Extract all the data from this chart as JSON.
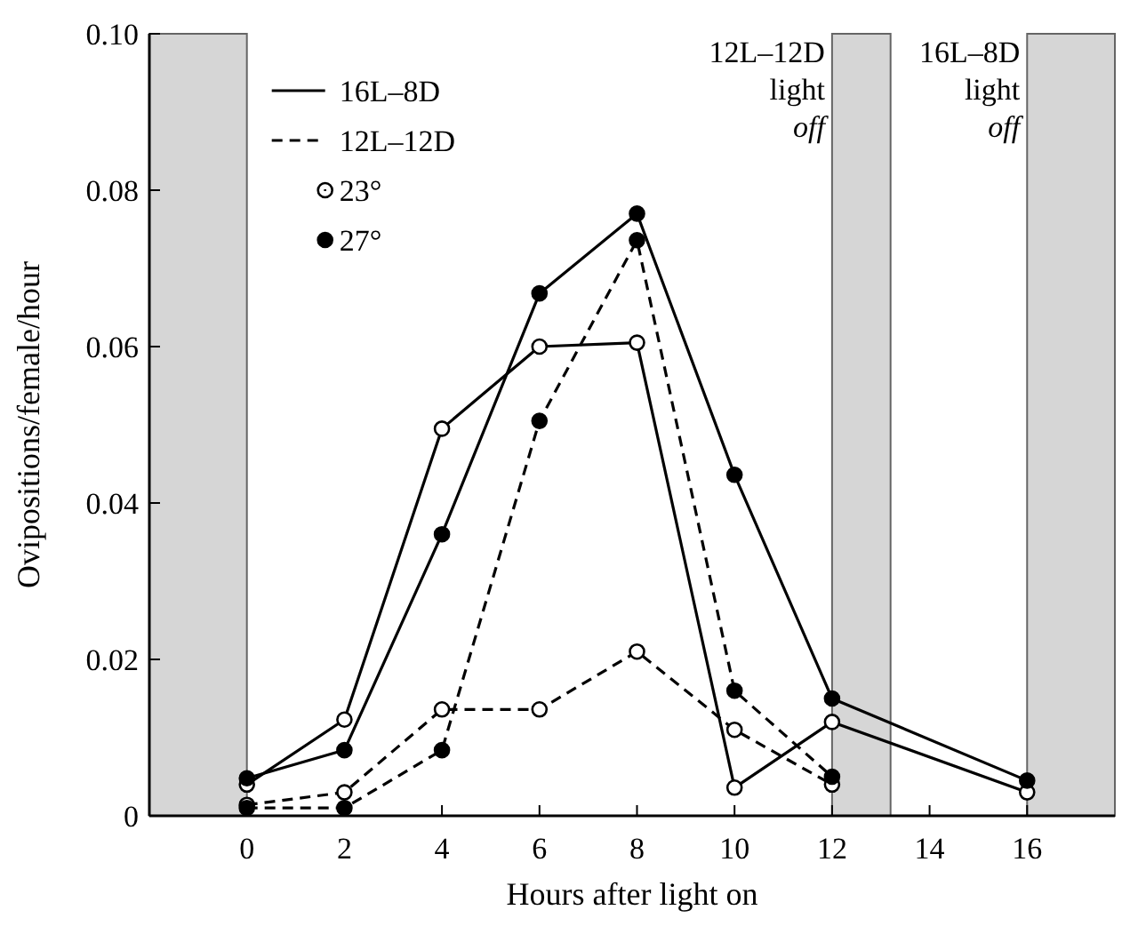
{
  "chart_data": {
    "type": "line",
    "xlabel": "Hours after light on",
    "ylabel": "Ovipositions/female/hour",
    "x": [
      0,
      2,
      4,
      6,
      8,
      10,
      12,
      16
    ],
    "xlim": [
      -2,
      17.8
    ],
    "xticks": [
      0,
      2,
      4,
      6,
      8,
      10,
      12,
      14,
      16
    ],
    "ylim": [
      0,
      0.1
    ],
    "yticks": [
      0,
      0.02,
      0.04,
      0.06,
      0.08,
      {
        "value": 0.1,
        "label": "0.10"
      }
    ],
    "marker": "circle",
    "grid": false,
    "series": [
      {
        "color": "#000000",
        "line_style": "solid",
        "values": [
          0.004,
          0.0123,
          0.0495,
          0.06,
          0.0605,
          0.0036,
          0.012,
          0.003
        ]
      },
      {
        "color": "#000000",
        "line_style": "solid",
        "values": [
          0.0048,
          0.0084,
          0.036,
          0.0668,
          0.077,
          0.0436,
          0.015,
          0.0045
        ]
      },
      {
        "color": "#000000",
        "line_style": "dashed",
        "values": [
          0.0014,
          0.003,
          0.0136,
          0.0136,
          0.021,
          0.011,
          0.004,
          null
        ]
      },
      {
        "color": "#000000",
        "line_style": "dashed",
        "values": [
          0.001,
          0.001,
          0.0084,
          0.0505,
          0.0736,
          0.016,
          0.005,
          null
        ]
      }
    ],
    "annotations": [
      "16L–8D",
      "12L–12D",
      "23°",
      "27°"
    ],
    "bands": [
      {
        "axis": "x",
        "from": -2,
        "to": 0,
        "color": "#bbbbbb"
      },
      {
        "axis": "x",
        "from": 12,
        "to": 13.2,
        "label": "12L–12D light off",
        "color": "#bbbbbb"
      },
      {
        "axis": "x",
        "from": 16,
        "to": 17.8,
        "label": "16L–8D light off",
        "color": "#bbbbbb"
      }
    ]
  }
}
